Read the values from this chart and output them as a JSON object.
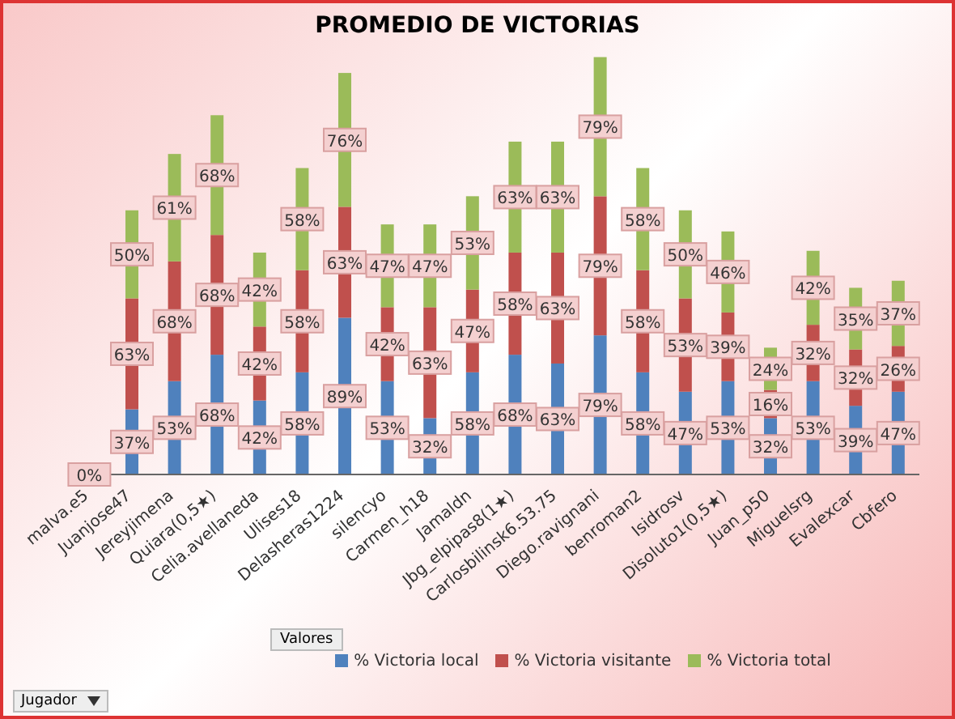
{
  "chart_data": {
    "type": "bar",
    "title": "PROMEDIO DE VICTORIAS",
    "stacked": true,
    "legend": "bottom",
    "grid": false,
    "annotations": [
      "Valores",
      "Jugador"
    ],
    "categories": [
      "malva.e5",
      "Juanjose47",
      "Jereyjimena",
      "Quiara(0,5★)",
      "Celia.avellaneda",
      "Ulises18",
      "Delasheras1224",
      "silencyo",
      "Carmen_h18",
      "Jamaldn",
      "Jbg_elpipas8(1★)",
      "Carlosbilinsk6.53.75",
      "Diego.ravignani",
      "benroman2",
      "Isidrosv",
      "Disoluto1(0,5★)",
      "Juan_p50",
      "Miguelsrg",
      "Evalexcar",
      "Cbfero"
    ],
    "series": [
      {
        "name": "% Victoria local",
        "color": "#4f81bd",
        "values": [
          0,
          37,
          53,
          68,
          42,
          58,
          89,
          53,
          32,
          58,
          68,
          63,
          79,
          58,
          47,
          53,
          32,
          53,
          39,
          47
        ],
        "value_labels": [
          "0%",
          "37%",
          "53%",
          "68%",
          "42%",
          "58%",
          "89%",
          "53%",
          "32%",
          "58%",
          "68%",
          "63%",
          "79%",
          "58%",
          "47%",
          "53%",
          "32%",
          "53%",
          "39%",
          "47%"
        ]
      },
      {
        "name": "% Victoria visitante",
        "color": "#c0504d",
        "values": [
          0,
          63,
          68,
          68,
          42,
          58,
          63,
          42,
          63,
          47,
          58,
          63,
          79,
          58,
          53,
          39,
          16,
          32,
          32,
          26
        ],
        "value_labels": [
          null,
          "63%",
          "68%",
          "68%",
          "42%",
          "58%",
          "63%",
          "42%",
          "63%",
          "47%",
          "58%",
          "63%",
          "79%",
          "58%",
          "53%",
          "39%",
          "16%",
          "32%",
          "32%",
          "26%"
        ]
      },
      {
        "name": "% Victoria total",
        "color": "#9bbb59",
        "values": [
          0,
          50,
          61,
          68,
          42,
          58,
          76,
          47,
          47,
          53,
          63,
          63,
          79,
          58,
          50,
          46,
          24,
          42,
          35,
          37
        ],
        "value_labels": [
          null,
          "50%",
          "61%",
          "68%",
          "42%",
          "58%",
          "76%",
          "47%",
          "47%",
          "53%",
          "63%",
          "63%",
          "79%",
          "58%",
          "50%",
          "46%",
          "24%",
          "42%",
          "35%",
          "37%"
        ]
      }
    ]
  }
}
